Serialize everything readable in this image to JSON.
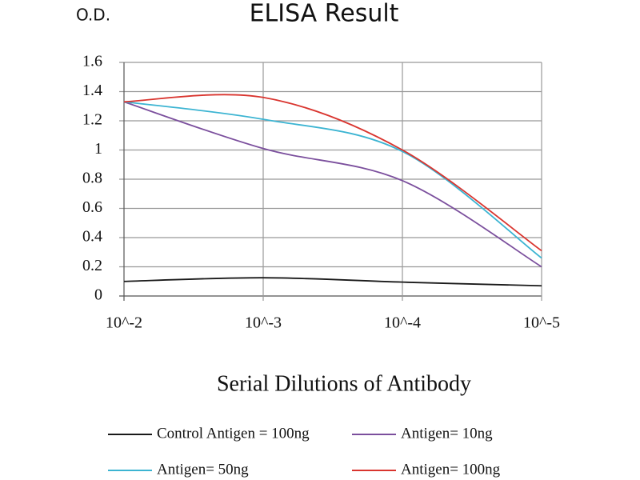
{
  "chart_data": {
    "type": "line",
    "title": "ELISA Result",
    "ylabel": "O.D.",
    "xlabel": "Serial Dilutions of Antibody",
    "categories": [
      "10^-2",
      "10^-3",
      "10^-4",
      "10^-5"
    ],
    "series": [
      {
        "name": "Control Antigen = 100ng",
        "color": "#1a1a1a",
        "values": [
          0.1,
          0.125,
          0.095,
          0.07
        ]
      },
      {
        "name": "Antigen= 10ng",
        "color": "#7b4f9d",
        "values": [
          1.33,
          1.01,
          0.79,
          0.2
        ]
      },
      {
        "name": "Antigen= 50ng",
        "color": "#3cb4d2",
        "values": [
          1.33,
          1.21,
          0.99,
          0.26
        ]
      },
      {
        "name": "Antigen= 100ng",
        "color": "#d9352f",
        "values": [
          1.33,
          1.36,
          1.0,
          0.31
        ]
      }
    ],
    "ylim": [
      0,
      1.6
    ],
    "yticks": [
      0,
      0.2,
      0.4,
      0.6,
      0.8,
      1,
      1.2,
      1.4,
      1.6
    ],
    "grid": true
  }
}
